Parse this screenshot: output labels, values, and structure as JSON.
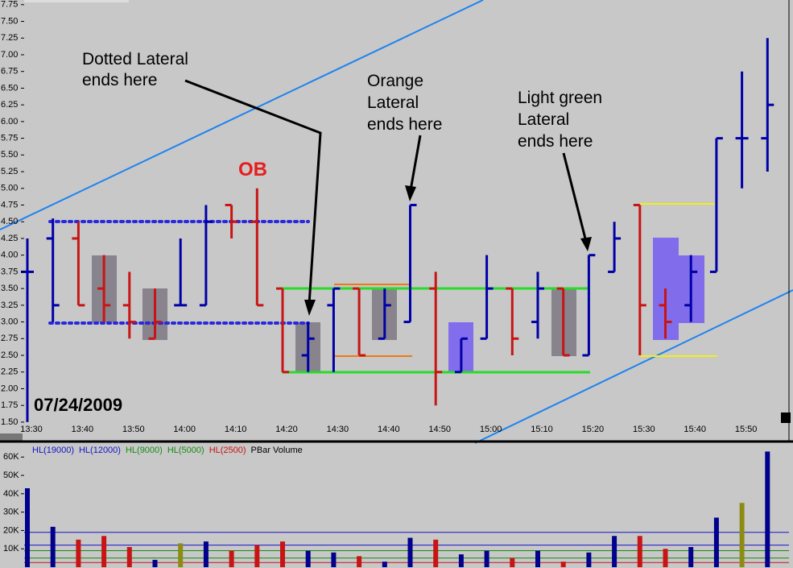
{
  "chart_data": {
    "type": "ohlc",
    "date_label": "07/24/2009",
    "marker_label": "OB",
    "annotations": [
      [
        "Dotted Lateral",
        "ends here"
      ],
      [
        "Orange",
        "Lateral",
        "ends here"
      ],
      [
        "Light green",
        "Lateral",
        "ends here"
      ]
    ],
    "xticks": [
      "13:30",
      "13:40",
      "13:50",
      "14:00",
      "14:10",
      "14:20",
      "14:30",
      "14:40",
      "14:50",
      "15:00",
      "15:10",
      "15:20",
      "15:30",
      "15:40",
      "15:50"
    ],
    "ylim": [
      1.27,
      7.82
    ],
    "yticks": [
      7.75,
      {
        "value": 7.5,
        "label": "7.50"
      },
      7.25,
      {
        "value": 7,
        "label": "7.00"
      },
      6.75,
      {
        "value": 6.5,
        "label": "6.50"
      },
      6.25,
      {
        "value": 6,
        "label": "6.00"
      },
      5.75,
      {
        "value": 5.5,
        "label": "5.50"
      },
      5.25,
      {
        "value": 5,
        "label": "5.00"
      },
      4.75,
      {
        "value": 4.5,
        "label": "4.50"
      },
      4.25,
      {
        "value": 4,
        "label": "4.00"
      },
      3.75,
      {
        "value": 3.5,
        "label": "3.50"
      },
      3.25,
      {
        "value": 3,
        "label": "3.00"
      },
      2.75,
      {
        "value": 2.5,
        "label": "2.50"
      },
      2.25,
      {
        "value": 2,
        "label": "2.00"
      },
      1.75,
      {
        "value": 1.5,
        "label": "1.50"
      }
    ],
    "high": [
      4.25,
      4.55,
      4.5,
      4.0,
      3.75,
      3.5,
      4.25,
      4.75,
      4.75,
      5.0,
      3.5,
      3.0,
      3.5,
      3.5,
      3.5,
      4.75,
      3.75,
      2.75,
      4.0,
      3.5,
      3.75,
      3.5,
      4.0,
      4.5,
      4.75,
      3.5,
      4.0,
      5.75,
      6.75,
      7.25
    ],
    "low": [
      1.5,
      3.0,
      3.25,
      3.0,
      2.75,
      2.75,
      3.25,
      3.25,
      4.25,
      3.25,
      2.25,
      2.25,
      2.25,
      2.5,
      2.75,
      3.0,
      1.75,
      2.25,
      2.75,
      2.5,
      2.75,
      2.5,
      2.5,
      3.75,
      2.5,
      2.75,
      3.0,
      3.75,
      5.0,
      5.25
    ],
    "open": [
      3.75,
      4.25,
      4.25,
      3.5,
      3.25,
      2.75,
      3.25,
      3.25,
      4.75,
      4.5,
      3.5,
      2.5,
      3.25,
      3.5,
      2.75,
      3.0,
      3.5,
      2.25,
      2.75,
      3.5,
      3.0,
      3.5,
      2.5,
      3.75,
      4.75,
      3.25,
      3.25,
      3.75,
      5.75,
      5.75
    ],
    "close": [
      3.75,
      3.25,
      3.25,
      3.25,
      3.0,
      3.0,
      3.25,
      4.5,
      4.5,
      3.25,
      2.25,
      2.75,
      3.5,
      2.5,
      3.25,
      4.75,
      2.25,
      2.75,
      3.5,
      2.75,
      3.5,
      2.5,
      4.0,
      4.25,
      3.25,
      3.0,
      3.75,
      5.75,
      5.75,
      6.25
    ],
    "bar_colors": [
      "#0000a8",
      "#0000a8",
      "#c81414",
      "#c81414",
      "#c81414",
      "#c81414",
      "#0000a8",
      "#0000a8",
      "#c81414",
      "#c81414",
      "#c81414",
      "#0000a8",
      "#0000a8",
      "#c81414",
      "#0000a8",
      "#0000a8",
      "#c81414",
      "#0000a8",
      "#0000a8",
      "#c81414",
      "#0000a8",
      "#c81414",
      "#0000a8",
      "#0000a8",
      "#c81414",
      "#c81414",
      "#0000a8",
      "#0000a8",
      "#0000a8",
      "#0000a8"
    ],
    "volume_legend": [
      "HL(19000)",
      "HL(12000)",
      "HL(9000)",
      "HL(5000)",
      "HL(2500)",
      "PBar Volume"
    ],
    "volume_legend_colors": [
      "#1414c8",
      "#1414c8",
      "#148c14",
      "#148c14",
      "#c81414",
      "#000000"
    ],
    "volume": [
      43000,
      22000,
      15000,
      17000,
      11000,
      4000,
      13000,
      14000,
      9000,
      12000,
      14000,
      9000,
      8000,
      6000,
      3000,
      16000,
      15000,
      7000,
      9000,
      5000,
      9000,
      3000,
      8000,
      17000,
      17000,
      10000,
      11000,
      27000,
      35000,
      63000
    ],
    "volume_colors": [
      "#00008c",
      "#00008c",
      "#c81414",
      "#c81414",
      "#c81414",
      "#00008c",
      "#8c8c14",
      "#00008c",
      "#c81414",
      "#c81414",
      "#c81414",
      "#00008c",
      "#00008c",
      "#c81414",
      "#00008c",
      "#00008c",
      "#c81414",
      "#00008c",
      "#00008c",
      "#c81414",
      "#00008c",
      "#c81414",
      "#00008c",
      "#00008c",
      "#c81414",
      "#c81414",
      "#00008c",
      "#00008c",
      "#8c8c14",
      "#00008c"
    ],
    "volume_ylim": [
      0,
      66700
    ],
    "volume_yticks": [
      {
        "value": 10000,
        "label": "10K"
      },
      {
        "value": 20000,
        "label": "20K"
      },
      {
        "value": 30000,
        "label": "30K"
      },
      {
        "value": 40000,
        "label": "40K"
      },
      {
        "value": 50000,
        "label": "50K"
      },
      {
        "value": 60000,
        "label": "60K"
      }
    ],
    "volume_levels": [
      19000,
      12000,
      9000,
      5000,
      2500
    ]
  }
}
